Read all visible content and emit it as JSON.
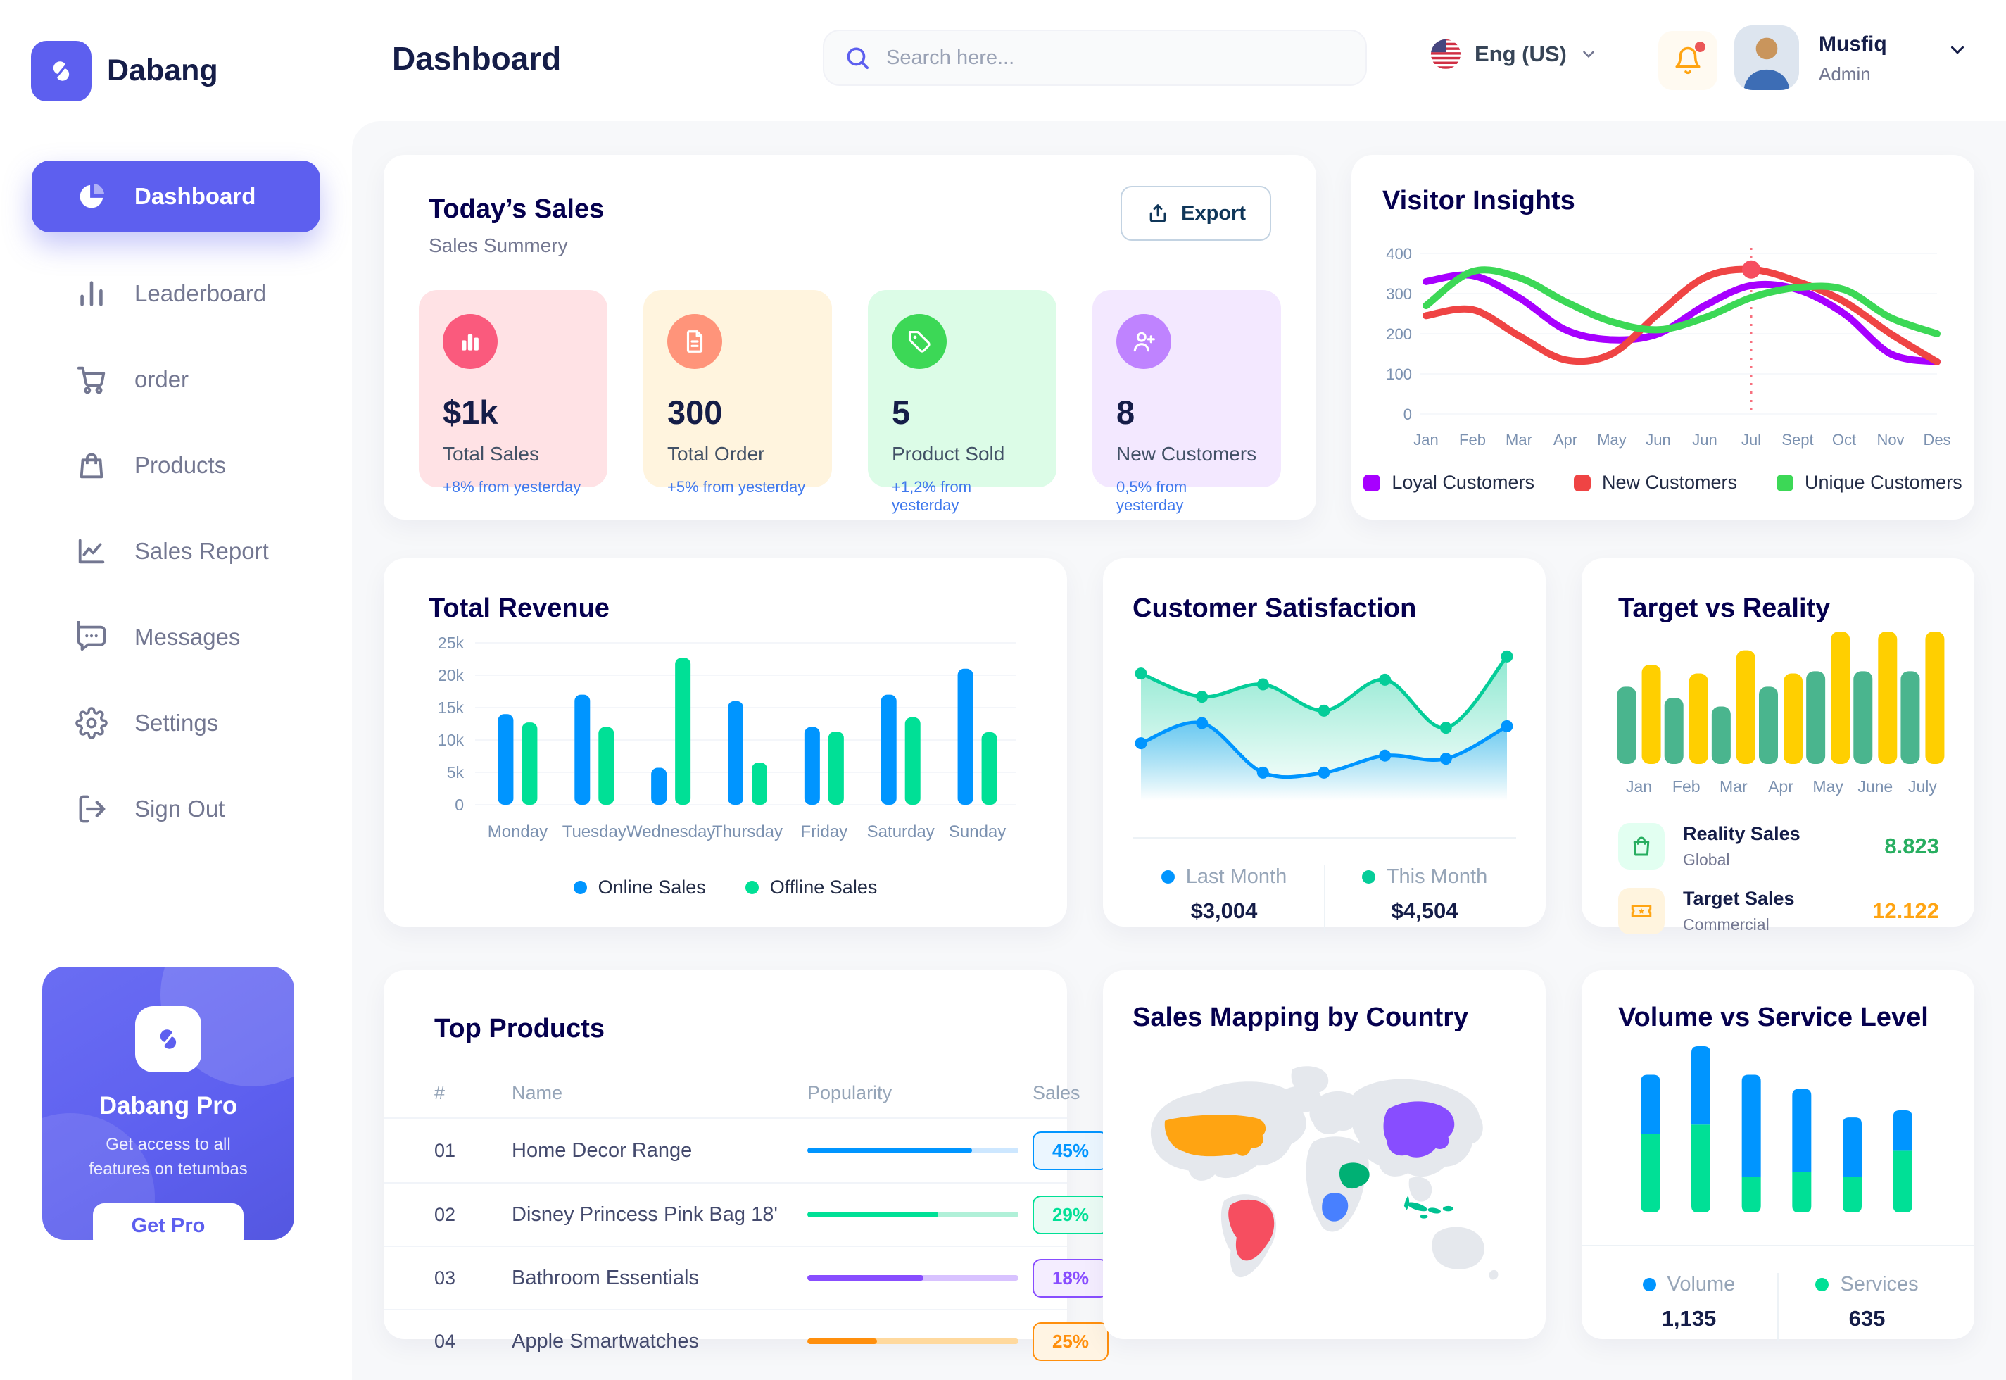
{
  "brand": {
    "name": "Dabang"
  },
  "header": {
    "title": "Dashboard",
    "search_placeholder": "Search here...",
    "language": "Eng (US)",
    "user_name": "Musfiq",
    "user_role": "Admin"
  },
  "sidebar": {
    "items": [
      {
        "label": "Dashboard",
        "active": true
      },
      {
        "label": "Leaderboard"
      },
      {
        "label": "order"
      },
      {
        "label": "Products"
      },
      {
        "label": "Sales Report"
      },
      {
        "label": "Messages"
      },
      {
        "label": "Settings"
      },
      {
        "label": "Sign Out"
      }
    ],
    "pro_card": {
      "title": "Dabang Pro",
      "description": "Get access to all features on tetumbas",
      "button": "Get Pro"
    }
  },
  "today_sales": {
    "title": "Today’s Sales",
    "subtitle": "Sales Summery",
    "export_label": "Export",
    "delta_color": "#4079ED",
    "cards": [
      {
        "value": "$1k",
        "label": "Total Sales",
        "delta": "+8% from yesterday",
        "bg": "#FFE2E5",
        "icon_bg": "#FA5A7D",
        "icon": "bar-chart"
      },
      {
        "value": "300",
        "label": "Total Order",
        "delta": "+5% from yesterday",
        "bg": "#FFF4DE",
        "icon_bg": "#FF947A",
        "icon": "order-file"
      },
      {
        "value": "5",
        "label": "Product Sold",
        "delta": "+1,2% from yesterday",
        "bg": "#DCFCE7",
        "icon_bg": "#3CD856",
        "icon": "tag"
      },
      {
        "value": "8",
        "label": "New Customers",
        "delta": "0,5% from yesterday",
        "bg": "#F3E8FF",
        "icon_bg": "#BF83FF",
        "icon": "user-plus"
      }
    ]
  },
  "chart_data": [
    {
      "id": "visitor_insights",
      "type": "line",
      "title": "Visitor Insights",
      "categories": [
        "Jan",
        "Feb",
        "Mar",
        "Apr",
        "May",
        "Jun",
        "Jun",
        "Jul",
        "Sept",
        "Oct",
        "Nov",
        "Des"
      ],
      "ylim": [
        0,
        400
      ],
      "yticks": [
        0,
        100,
        200,
        300,
        400
      ],
      "grid": true,
      "legend_position": "bottom",
      "series": [
        {
          "name": "Loyal Customers",
          "color": "#A700FF",
          "values": [
            330,
            345,
            290,
            210,
            185,
            200,
            270,
            320,
            310,
            250,
            150,
            130
          ]
        },
        {
          "name": "New Customers",
          "color": "#EF4444",
          "values": [
            245,
            260,
            195,
            135,
            150,
            250,
            340,
            360,
            330,
            280,
            200,
            130
          ]
        },
        {
          "name": "Unique Customers",
          "color": "#3CD856",
          "values": [
            270,
            355,
            340,
            280,
            230,
            210,
            240,
            290,
            315,
            310,
            240,
            200
          ]
        }
      ],
      "highlight": {
        "series": "New Customers",
        "category_index": 7,
        "value": 360
      }
    },
    {
      "id": "total_revenue",
      "type": "bar",
      "title": "Total Revenue",
      "categories": [
        "Monday",
        "Tuesday",
        "Wednesday",
        "Thursday",
        "Friday",
        "Saturday",
        "Sunday"
      ],
      "ylim": [
        0,
        25000
      ],
      "yticks": [
        {
          "v": 0,
          "label": "0"
        },
        {
          "v": 5000,
          "label": "5k"
        },
        {
          "v": 10000,
          "label": "10k"
        },
        {
          "v": 15000,
          "label": "15k"
        },
        {
          "v": 20000,
          "label": "20k"
        },
        {
          "v": 25000,
          "label": "25k"
        }
      ],
      "grid": true,
      "legend_position": "bottom",
      "series": [
        {
          "name": "Online Sales",
          "color": "#0095FF",
          "values": [
            14000,
            17000,
            5700,
            16000,
            12000,
            17000,
            21000
          ]
        },
        {
          "name": "Offline Sales",
          "color": "#00E096",
          "values": [
            12700,
            12000,
            22700,
            6500,
            11300,
            13500,
            11200
          ]
        }
      ]
    },
    {
      "id": "customer_satisfaction",
      "type": "area",
      "title": "Customer Satisfaction",
      "x": [
        1,
        2,
        3,
        4,
        5,
        6,
        7
      ],
      "ylim": [
        0,
        100
      ],
      "grid": false,
      "legend_position": "bottom",
      "series": [
        {
          "name": "Last Month",
          "color": "#0095FF",
          "total": "$3,004",
          "values": [
            37,
            50,
            18,
            18,
            29,
            27,
            48
          ]
        },
        {
          "name": "This Month",
          "color": "#05CD99",
          "total": "$4,504",
          "values": [
            82,
            67,
            75,
            58,
            78,
            47,
            93
          ]
        }
      ]
    },
    {
      "id": "target_vs_reality",
      "type": "bar",
      "title": "Target vs Reality",
      "categories": [
        "Jan",
        "Feb",
        "Mar",
        "Apr",
        "May",
        "June",
        "July"
      ],
      "ylim": [
        0,
        12
      ],
      "grid": false,
      "legend_position": "bottom-list",
      "series": [
        {
          "name": "Reality Sales",
          "subtitle": "Global",
          "color": "#4AB58E",
          "tile_bg": "#E2FFF1",
          "value_label": "8.823",
          "value_color": "#27AE60",
          "values": [
            7,
            6,
            5.2,
            7,
            8.4,
            8.4,
            8.4
          ]
        },
        {
          "name": "Target Sales",
          "subtitle": "Commercial",
          "color": "#FFCF00",
          "tile_bg": "#FFF4DE",
          "value_label": "12.122",
          "value_color": "#FFA412",
          "values": [
            9,
            8.2,
            10.3,
            8.2,
            12,
            12,
            12
          ]
        }
      ]
    },
    {
      "id": "top_products",
      "type": "table",
      "title": "Top Products",
      "headers": [
        "#",
        "Name",
        "Popularity",
        "Sales"
      ],
      "rows": [
        {
          "rank": "01",
          "name": "Home Decor Range",
          "popularity": 78,
          "sales": "45%",
          "color": "#0095FF",
          "track": "#CDE7FF",
          "badge_bg": "#EBF6FF"
        },
        {
          "rank": "02",
          "name": "Disney Princess Pink Bag 18'",
          "popularity": 62,
          "sales": "29%",
          "color": "#00E096",
          "track": "#B0F0D8",
          "badge_bg": "#EAFBF4"
        },
        {
          "rank": "03",
          "name": "Bathroom Essentials",
          "popularity": 55,
          "sales": "18%",
          "color": "#884DFF",
          "track": "#D8C2FF",
          "badge_bg": "#F4EDFF"
        },
        {
          "rank": "04",
          "name": "Apple Smartwatches",
          "popularity": 33,
          "sales": "25%",
          "color": "#FF8F0D",
          "track": "#FFD99E",
          "badge_bg": "#FFF4E3"
        }
      ]
    },
    {
      "id": "sales_mapping",
      "type": "map",
      "title": "Sales Mapping by Country",
      "land_color": "#E5E8ED",
      "countries": [
        {
          "name": "United States",
          "color": "#FFA412"
        },
        {
          "name": "Brazil",
          "color": "#F64E60"
        },
        {
          "name": "Saudi Arabia",
          "color": "#00B074"
        },
        {
          "name": "DR Congo",
          "color": "#4880FF"
        },
        {
          "name": "China",
          "color": "#884DFF"
        },
        {
          "name": "Indonesia",
          "color": "#00C292"
        }
      ]
    },
    {
      "id": "volume_service_level",
      "type": "stacked-bar",
      "title": "Volume vs Service Level",
      "categories": [
        "1",
        "2",
        "3",
        "4",
        "5",
        "6"
      ],
      "grid": false,
      "legend_position": "bottom",
      "series": [
        {
          "name": "Volume",
          "color": "#0095FF",
          "total": "1,135",
          "values": [
            25,
            33,
            43,
            35,
            25,
            17
          ]
        },
        {
          "name": "Services",
          "color": "#00E096",
          "total": "635",
          "values": [
            33,
            37,
            15,
            17,
            15,
            26
          ]
        }
      ]
    }
  ]
}
